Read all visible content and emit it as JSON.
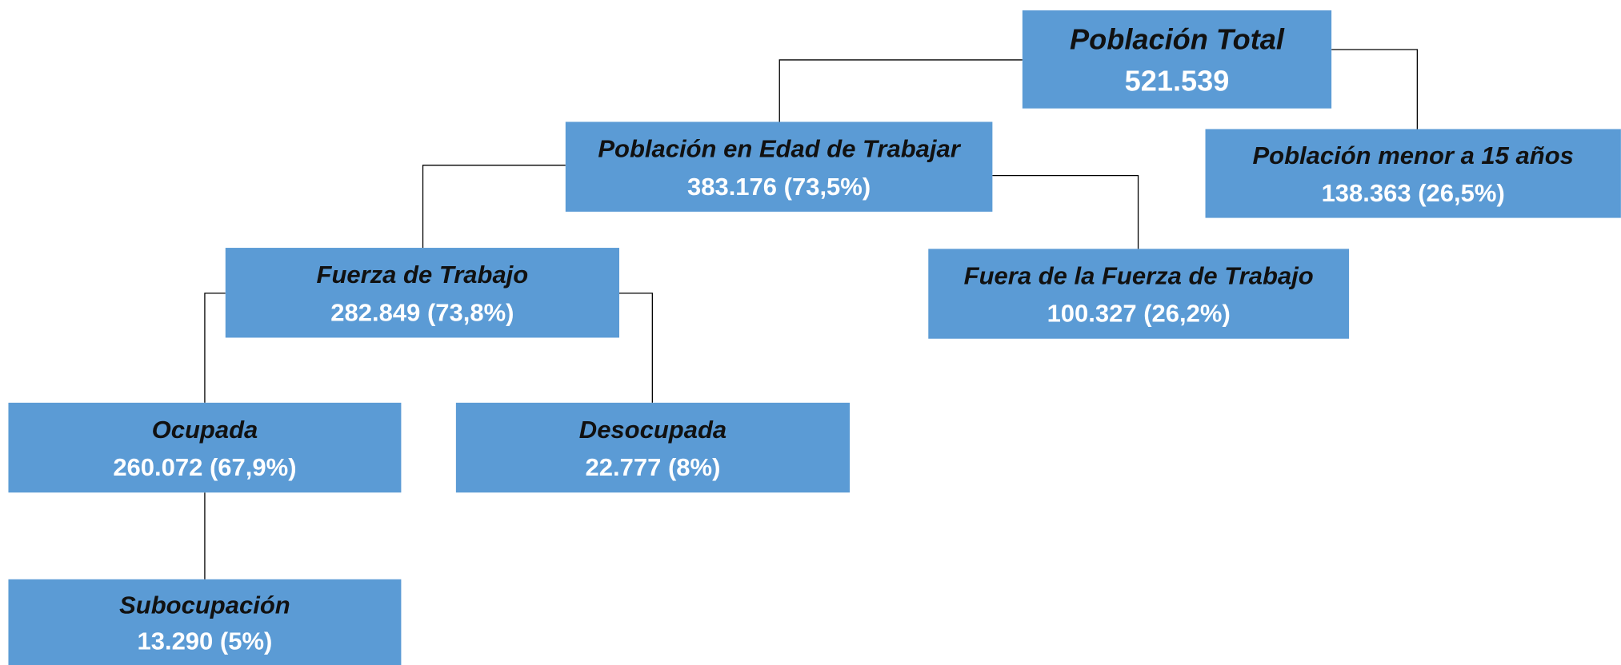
{
  "nodes": [
    {
      "label": "Población Total",
      "value": "521.539"
    },
    {
      "label": "Población en Edad de Trabajar",
      "value": "383.176 (73,5%)"
    },
    {
      "label": "Población menor a 15 años",
      "value": "138.363 (26,5%)"
    },
    {
      "label": "Fuerza de Trabajo",
      "value": "282.849 (73,8%)"
    },
    {
      "label": "Fuera de la Fuerza de Trabajo",
      "value": "100.327 (26,2%)"
    },
    {
      "label": "Ocupada",
      "value": "260.072 (67,9%)"
    },
    {
      "label": "Desocupada",
      "value": "22.777 (8%)"
    },
    {
      "label": "Subocupación",
      "value": "13.290 (5%)"
    }
  ]
}
